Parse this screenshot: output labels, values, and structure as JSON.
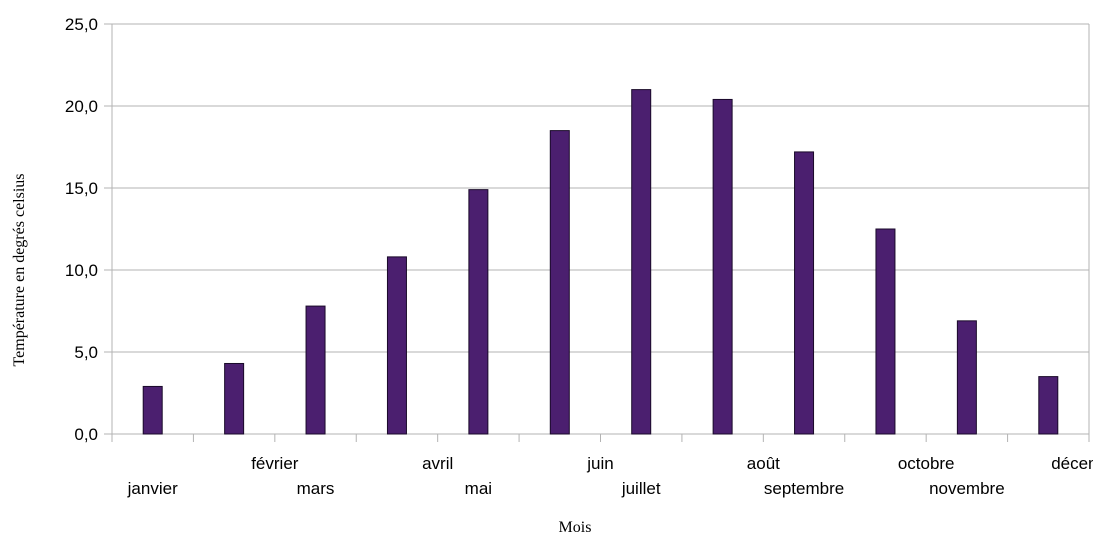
{
  "chart_data": {
    "type": "bar",
    "title": "",
    "xlabel": "Mois",
    "ylabel": "Température en degrés celsius",
    "categories": [
      "janvier",
      "février",
      "mars",
      "avril",
      "mai",
      "juin",
      "juillet",
      "août",
      "septembre",
      "octobre",
      "novembre",
      "décembre"
    ],
    "values": [
      2.9,
      4.3,
      7.8,
      10.8,
      14.9,
      18.5,
      21.0,
      20.4,
      17.2,
      12.5,
      6.9,
      3.5
    ],
    "ylim": [
      0,
      25
    ],
    "yticks": [
      "0,0",
      "5,0",
      "10,0",
      "15,0",
      "20,0",
      "25,0"
    ],
    "grid": true,
    "bar_color": "#4b1f6f",
    "grid_color": "#b3b3b3"
  }
}
